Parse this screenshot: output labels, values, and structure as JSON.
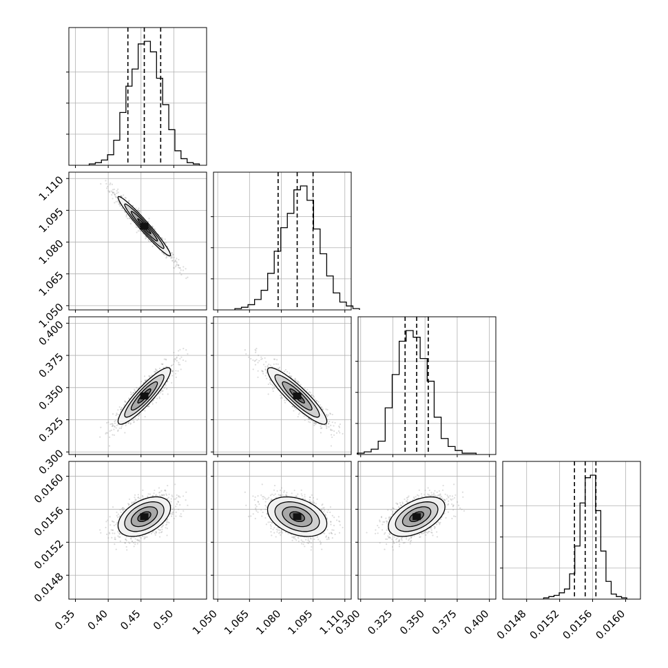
{
  "chart_data": {
    "type": "corner",
    "title": "",
    "parameters": [
      {
        "label": "",
        "range": [
          0.34,
          0.55
        ],
        "ticks": [
          0.35,
          0.4,
          0.45,
          0.5
        ],
        "tick_labels": [
          "0.35",
          "0.40",
          "0.45",
          "0.50"
        ],
        "quantiles": [
          0.43,
          0.455,
          0.48
        ],
        "mean": 0.455,
        "sd": 0.02
      },
      {
        "label": "",
        "range": [
          1.048,
          1.113
        ],
        "ticks": [
          1.05,
          1.065,
          1.08,
          1.095,
          1.11
        ],
        "tick_labels": [
          "1.050",
          "1.065",
          "1.080",
          "1.095",
          "1.110"
        ],
        "quantiles": [
          1.0785,
          1.0875,
          1.095
        ],
        "mean": 1.0875,
        "sd": 0.007
      },
      {
        "label": "",
        "range": [
          0.298,
          0.405
        ],
        "ticks": [
          0.3,
          0.325,
          0.35,
          0.375,
          0.4
        ],
        "tick_labels": [
          "0.300",
          "0.325",
          "0.350",
          "0.375",
          "0.400"
        ],
        "quantiles": [
          0.3345,
          0.3435,
          0.3525
        ],
        "mean": 0.3435,
        "sd": 0.011
      },
      {
        "label": "",
        "range": [
          0.01451,
          0.01618
        ],
        "ticks": [
          0.0148,
          0.0152,
          0.0156,
          0.016
        ],
        "tick_labels": [
          "0.0148",
          "0.0152",
          "0.0156",
          "0.0160"
        ],
        "quantiles": [
          0.01538,
          0.01551,
          0.01564
        ],
        "mean": 0.01551,
        "sd": 0.00012
      }
    ],
    "correlations": [
      [
        1,
        -0.97,
        0.9,
        0.45
      ],
      [
        -0.97,
        1,
        -0.9,
        -0.35
      ],
      [
        0.9,
        -0.9,
        1,
        0.5
      ],
      [
        0.45,
        -0.35,
        0.5,
        1
      ]
    ],
    "histograms": [
      {
        "values": [
          1,
          2,
          4,
          8,
          19,
          40,
          60,
          73,
          92,
          94,
          86,
          66,
          46,
          27,
          11,
          5,
          2,
          1
        ]
      },
      {
        "values": [
          1,
          2,
          4,
          8,
          15,
          28,
          45,
          63,
          74,
          92,
          95,
          84,
          62,
          43,
          26,
          13,
          6,
          3,
          1
        ]
      },
      {
        "values": [
          1,
          2,
          4,
          10,
          35,
          60,
          85,
          93,
          88,
          72,
          55,
          28,
          12,
          6,
          3,
          1,
          1
        ]
      },
      {
        "values": [
          1,
          2,
          3,
          5,
          8,
          20,
          42,
          76,
          96,
          98,
          70,
          38,
          14,
          4,
          2,
          1
        ]
      }
    ],
    "grid": true,
    "legend": ""
  }
}
